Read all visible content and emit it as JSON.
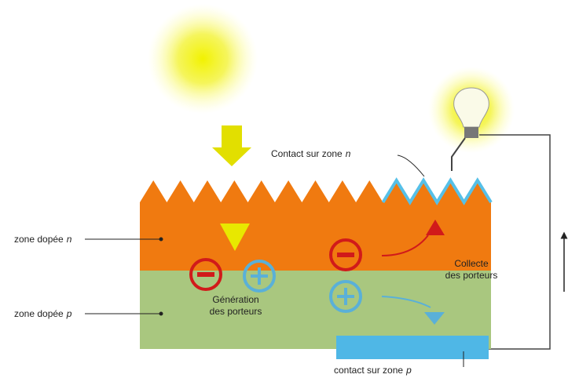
{
  "labels": {
    "contact_n": {
      "text": "Contact sur zone",
      "var": "n"
    },
    "zone_n": {
      "text": "zone dopée",
      "var": "n"
    },
    "zone_p": {
      "text": "zone dopée",
      "var": "p"
    },
    "generation": [
      "Génération",
      "des porteurs"
    ],
    "collecte": [
      "Collecte",
      "des porteurs"
    ],
    "contact_p": {
      "text": "contact sur zone",
      "var": "p"
    }
  }
}
